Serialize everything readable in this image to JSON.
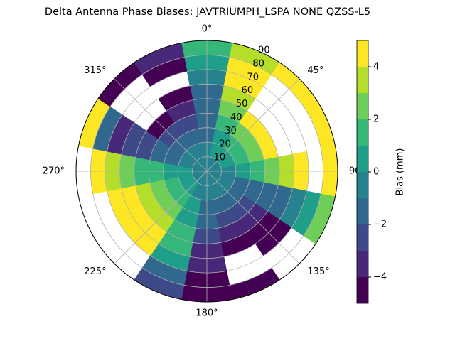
{
  "chart_data": {
    "type": "polar_contour",
    "title": "Delta Antenna Phase Biases: JAVTRIUMPH_LSPA NONE QZSS-L5",
    "azimuth": [
      0,
      22.5,
      45,
      67.5,
      90,
      112.5,
      135,
      157.5,
      180,
      202.5,
      225,
      247.5,
      270,
      292.5,
      315,
      337.5
    ],
    "radius": [
      5,
      15,
      25,
      35,
      45,
      55,
      65,
      75,
      85
    ],
    "values": [
      [
        -0.5,
        -0.5,
        -1,
        -1.5,
        -1.5,
        -1,
        -0.5,
        0.5,
        1.5
      ],
      [
        0,
        0.5,
        1,
        1.5,
        2.5,
        3.5,
        4.5,
        4.5,
        3.5
      ],
      [
        0,
        0.5,
        1.5,
        3,
        4.5,
        null,
        null,
        null,
        4.5
      ],
      [
        0,
        0.5,
        1.5,
        3,
        4.5,
        null,
        null,
        null,
        4.5
      ],
      [
        0,
        0,
        0.5,
        1.5,
        2.5,
        3.5,
        4.5,
        null,
        4.5
      ],
      [
        0,
        -0.5,
        -1,
        -1.5,
        -1.5,
        -1,
        -0.5,
        0.5,
        2.5
      ],
      [
        0,
        -0.5,
        -1.5,
        -2.5,
        -3.5,
        -4.5,
        -4.5,
        null,
        null
      ],
      [
        0,
        -0.5,
        -1.5,
        -2.5,
        -3.5,
        -4.5,
        null,
        null,
        -4.5
      ],
      [
        0,
        -0.5,
        -1,
        -1.5,
        -2.5,
        -3.5,
        -3.5,
        -4.5,
        -4.5
      ],
      [
        0,
        0,
        0.5,
        1,
        1.5,
        1.5,
        0.5,
        -1.5,
        -2.5
      ],
      [
        0,
        0.5,
        1.5,
        2.5,
        3.5,
        4.5,
        4.5,
        null,
        null
      ],
      [
        0,
        0.5,
        1.5,
        2.5,
        3.5,
        4.5,
        4.5,
        null,
        null
      ],
      [
        0,
        0.5,
        0.5,
        1.5,
        1.5,
        2.5,
        3.5,
        4.5,
        null
      ],
      [
        0,
        -0.5,
        -1,
        -1.5,
        -2.5,
        -2.5,
        -3.5,
        -1.5,
        4.5
      ],
      [
        0,
        -0.5,
        -1.5,
        -2.5,
        -4.5,
        null,
        null,
        null,
        -4.5
      ],
      [
        0,
        -0.5,
        -1,
        -2.5,
        -3.5,
        -4.5,
        null,
        -4.5,
        -3.5
      ]
    ],
    "rlim": [
      0,
      90
    ],
    "rticks": [
      10,
      20,
      30,
      40,
      50,
      60,
      70,
      80,
      90
    ],
    "thetaticks": [
      {
        "value": 0,
        "label": "0°"
      },
      {
        "value": 45,
        "label": "45°"
      },
      {
        "value": 90,
        "label": "90"
      },
      {
        "value": 135,
        "label": "135°"
      },
      {
        "value": 180,
        "label": "180°"
      },
      {
        "value": 225,
        "label": "225°"
      },
      {
        "value": 270,
        "label": "270°"
      },
      {
        "value": 315,
        "label": "315°"
      }
    ],
    "grid": true,
    "colorbar": {
      "label": "Bias (mm)",
      "levels": [
        -5,
        -4,
        -3,
        -2,
        -1,
        0,
        1,
        2,
        3,
        4,
        5
      ],
      "colors": [
        "#440154",
        "#482878",
        "#3e4989",
        "#31688e",
        "#26828e",
        "#1f9e89",
        "#35b779",
        "#6ece58",
        "#b5de2b",
        "#fde725"
      ],
      "ticks": [
        {
          "value": -4,
          "label": "−4"
        },
        {
          "value": -2,
          "label": "−2"
        },
        0,
        2,
        4
      ]
    }
  }
}
